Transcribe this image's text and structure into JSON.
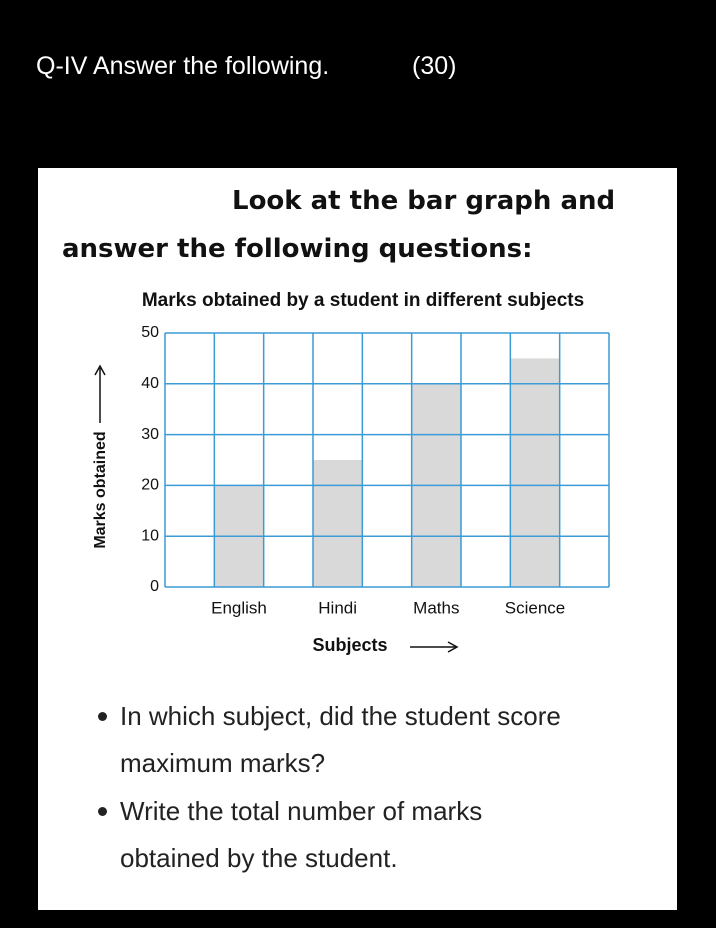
{
  "header": {
    "title": "Q-IV Answer the following.",
    "marks": "(30)"
  },
  "instruction": {
    "line1": "Look at the bar graph and",
    "line2": "answer the following questions:"
  },
  "chart_data": {
    "type": "bar",
    "title": "Marks obtained by a student in different subjects",
    "x_label": "Subjects",
    "y_label": "Marks obtained",
    "categories": [
      "English",
      "Hindi",
      "Maths",
      "Science"
    ],
    "values": [
      20,
      25,
      40,
      45
    ],
    "color": "#d9d9d9",
    "grid_color": "#3b9bd6",
    "ylim": [
      0,
      50
    ],
    "yticks": [
      0,
      10,
      20,
      30,
      40,
      50
    ],
    "grid": true
  },
  "questions": [
    [
      "In which subject, did the student score",
      "maximum marks?"
    ],
    [
      "Write the total number of marks",
      "obtained by the student."
    ]
  ]
}
